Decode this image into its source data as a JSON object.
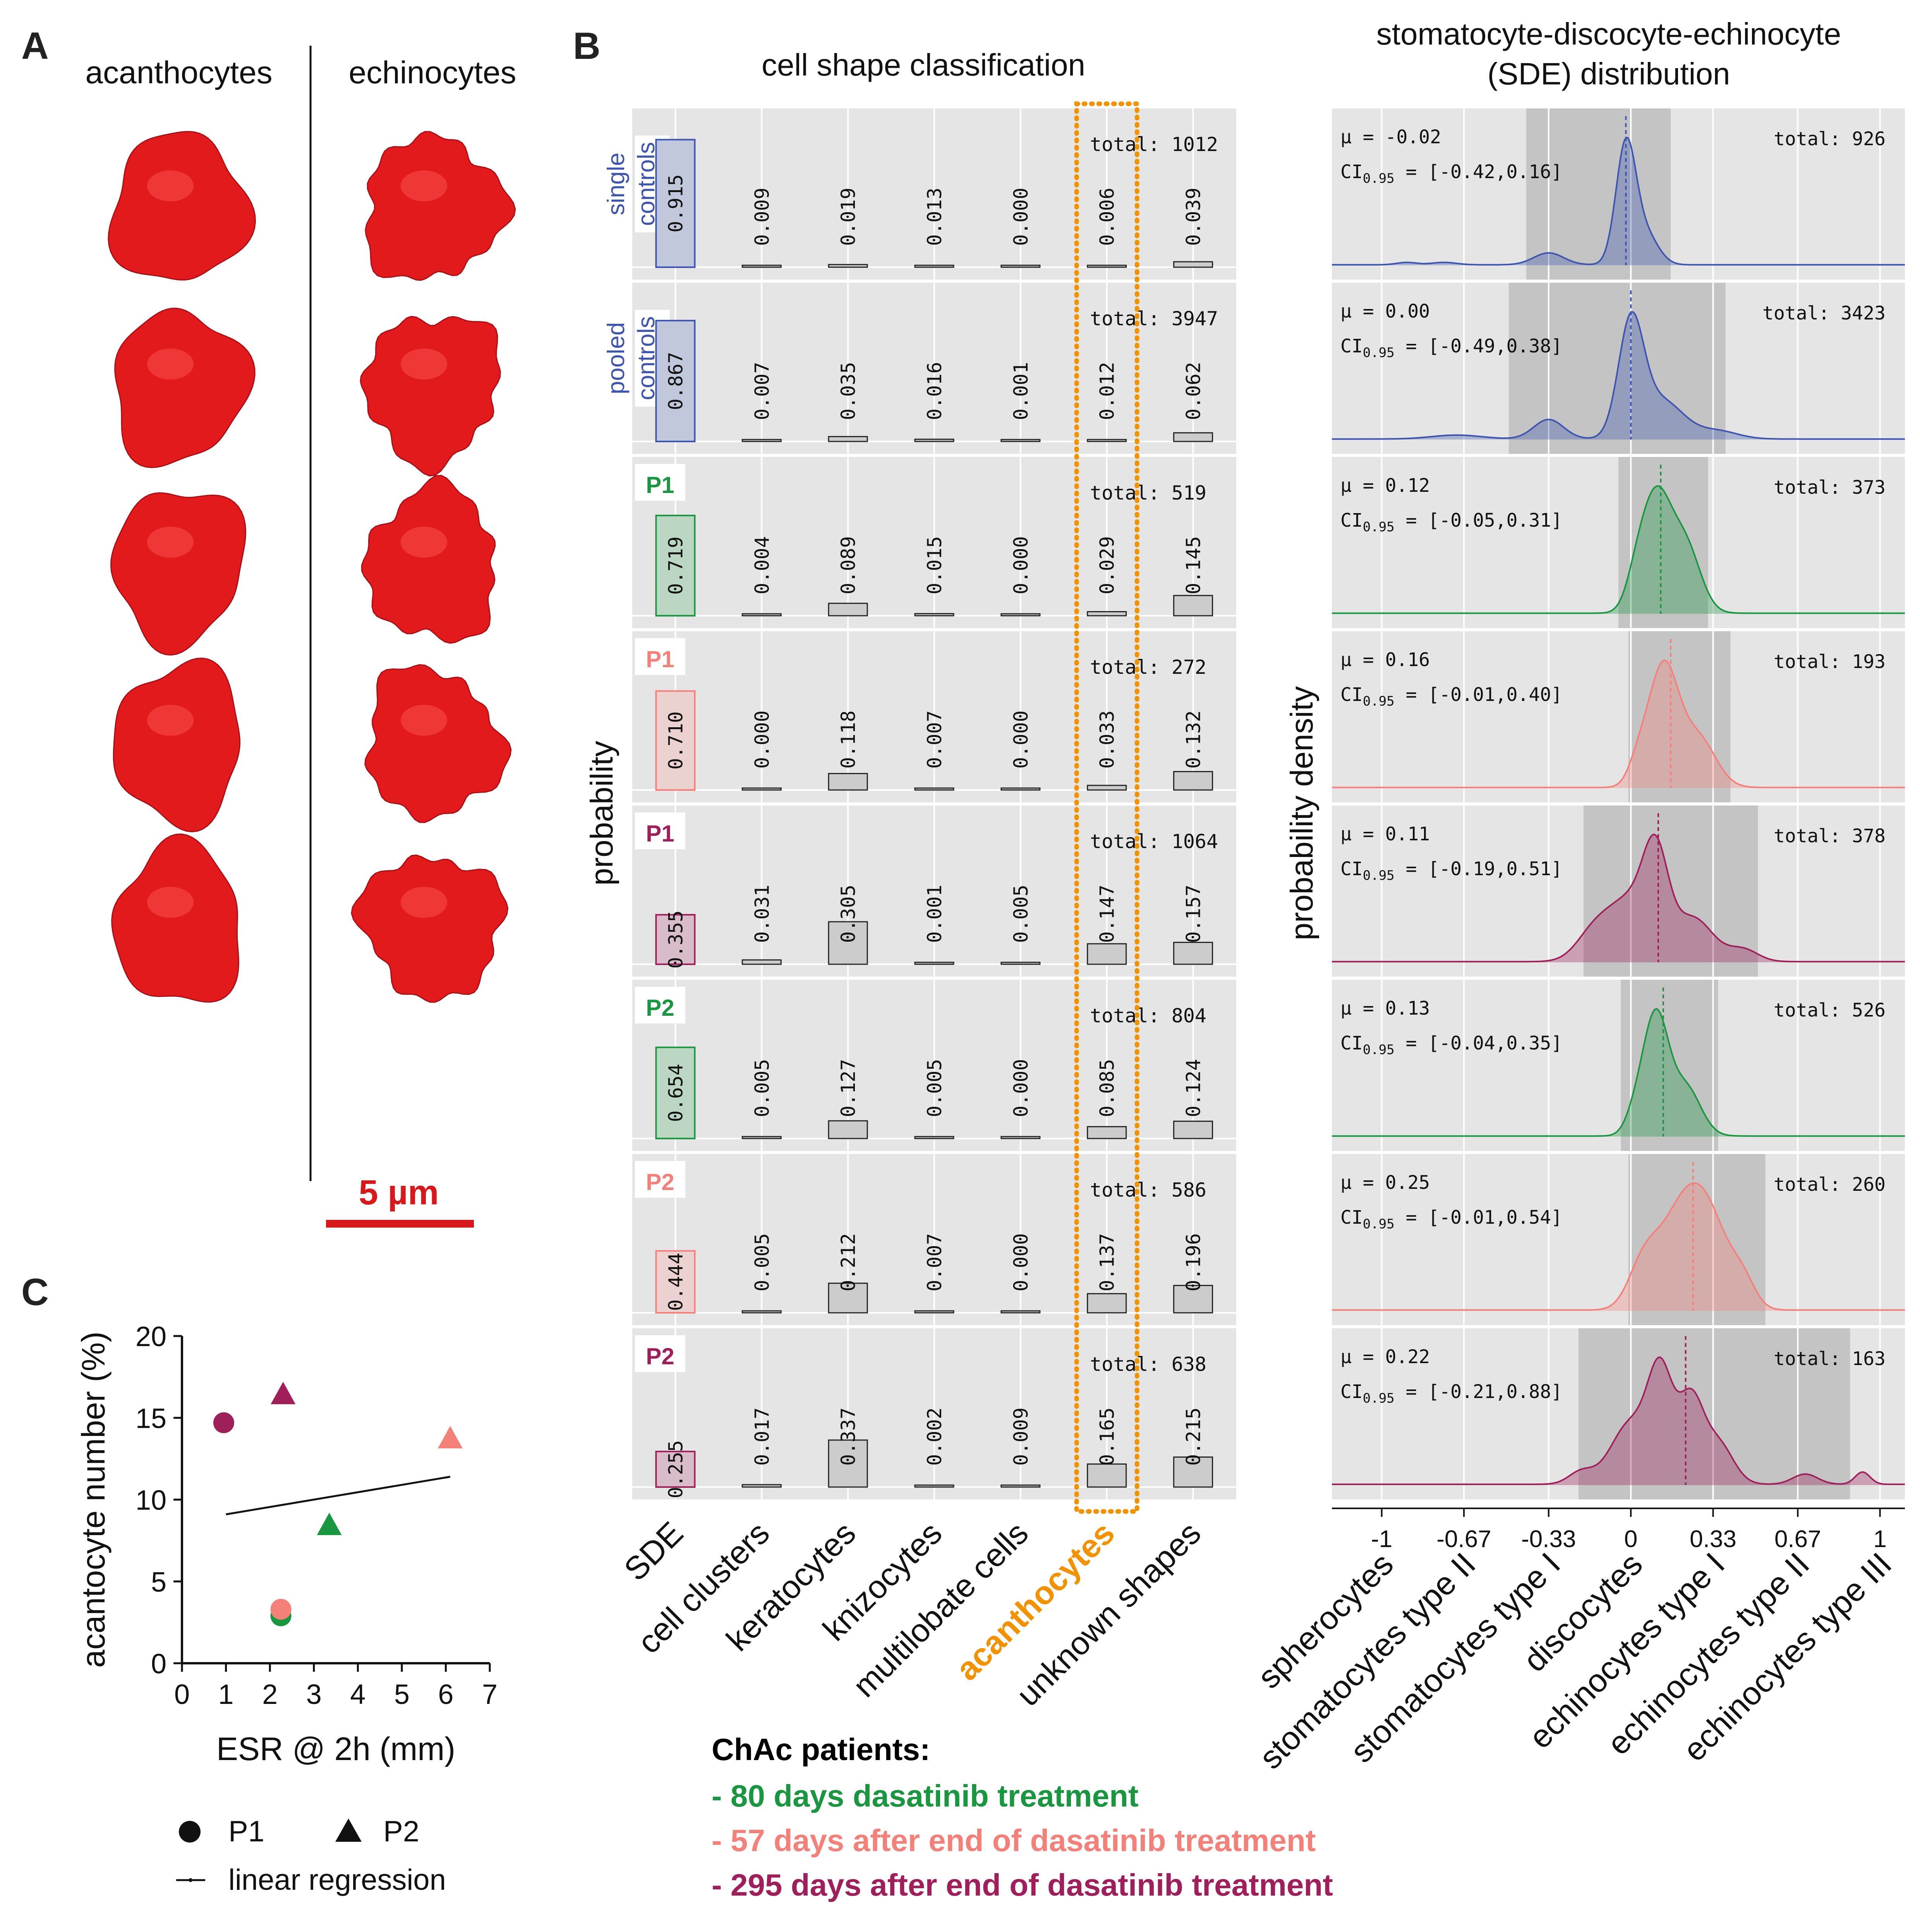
{
  "panel_labels": {
    "a": "A",
    "b": "B",
    "c": "C"
  },
  "panel_a": {
    "left_title": "acanthocytes",
    "right_title": "echinocytes",
    "scale_bar_label": "5 µm",
    "cell_color": "#e31a1c"
  },
  "panel_b": {
    "cls_title": "cell shape classification",
    "sde_title_line1": "stomatocyte-discocyte-echinocyte",
    "sde_title_line2": "(SDE) distribution",
    "cls_ylabel": "probability",
    "sde_ylabel": "probability density",
    "highlight_category": "acanthocytes",
    "highlight_color": "#f39200"
  },
  "patients_legend": {
    "title": "ChAc patients:",
    "items": [
      {
        "label": "- 80 days dasatinib treatment",
        "color": "#1a9641"
      },
      {
        "label": "- 57 days after end of dasatinib treatment",
        "color": "#f4807a"
      },
      {
        "label": "- 295 days after end of dasatinib treatment",
        "color": "#9e1f5a"
      }
    ]
  },
  "chart_data": [
    {
      "type": "bar",
      "title": "cell shape classification",
      "ylabel": "probability",
      "categories": [
        "SDE",
        "cell clusters",
        "keratocytes",
        "knizocytes",
        "multilobate cells",
        "acanthocytes",
        "unknown shapes"
      ],
      "ylim": [
        0,
        1
      ],
      "series": [
        {
          "name": "single controls",
          "label_lines": [
            "single",
            "controls"
          ],
          "color": "#3d55b0",
          "total_label": "total: 1012",
          "labels": [
            "0.915",
            "0.009",
            "0.019",
            "0.013",
            "0.000",
            "0.006",
            "0.039"
          ],
          "values": [
            0.915,
            0.009,
            0.019,
            0.013,
            0.0,
            0.006,
            0.039
          ]
        },
        {
          "name": "pooled controls",
          "label_lines": [
            "pooled",
            "controls"
          ],
          "color": "#3d55b0",
          "total_label": "total: 3947",
          "labels": [
            "0.867",
            "0.007",
            "0.035",
            "0.016",
            "0.001",
            "0.012",
            "0.062"
          ],
          "values": [
            0.867,
            0.007,
            0.035,
            0.016,
            0.001,
            0.012,
            0.062
          ]
        },
        {
          "name": "P1",
          "label_lines": [
            "P1"
          ],
          "color": "#1a9641",
          "total_label": "total: 519",
          "labels": [
            "0.719",
            "0.004",
            "0.089",
            "0.015",
            "0.000",
            "0.029",
            "0.145"
          ],
          "values": [
            0.719,
            0.004,
            0.089,
            0.015,
            0.0,
            0.029,
            0.145
          ]
        },
        {
          "name": "P1",
          "label_lines": [
            "P1"
          ],
          "color": "#f4807a",
          "total_label": "total: 272",
          "labels": [
            "0.710",
            "0.000",
            "0.118",
            "0.007",
            "0.000",
            "0.033",
            "0.132"
          ],
          "values": [
            0.71,
            0.0,
            0.118,
            0.007,
            0.0,
            0.033,
            0.132
          ]
        },
        {
          "name": "P1",
          "label_lines": [
            "P1"
          ],
          "color": "#9e1f5a",
          "total_label": "total: 1064",
          "labels": [
            "0.355",
            "0.031",
            "0.305",
            "0.001",
            "0.005",
            "0.147",
            "0.157"
          ],
          "values": [
            0.355,
            0.031,
            0.305,
            0.001,
            0.005,
            0.147,
            0.157
          ]
        },
        {
          "name": "P2",
          "label_lines": [
            "P2"
          ],
          "color": "#1a9641",
          "total_label": "total: 804",
          "labels": [
            "0.654",
            "0.005",
            "0.127",
            "0.005",
            "0.000",
            "0.085",
            "0.124"
          ],
          "values": [
            0.654,
            0.005,
            0.127,
            0.005,
            0.0,
            0.085,
            0.124
          ]
        },
        {
          "name": "P2",
          "label_lines": [
            "P2"
          ],
          "color": "#f4807a",
          "total_label": "total: 586",
          "labels": [
            "0.444",
            "0.005",
            "0.212",
            "0.007",
            "0.000",
            "0.137",
            "0.196"
          ],
          "values": [
            0.444,
            0.005,
            0.212,
            0.007,
            0.0,
            0.137,
            0.196
          ]
        },
        {
          "name": "P2",
          "label_lines": [
            "P2"
          ],
          "color": "#9e1f5a",
          "total_label": "total: 638",
          "labels": [
            "0.255",
            "0.017",
            "0.337",
            "0.002",
            "0.009",
            "0.165",
            "0.215"
          ],
          "values": [
            0.255,
            0.017,
            0.337,
            0.002,
            0.009,
            0.165,
            0.215
          ]
        }
      ]
    },
    {
      "type": "area",
      "title": "stomatocyte-discocyte-echinocyte (SDE) distribution",
      "ylabel": "probability density",
      "xlim": [
        -1.2,
        1.1
      ],
      "xticks": [
        -1,
        -0.67,
        -0.33,
        0,
        0.33,
        0.67,
        1
      ],
      "xtick_labels": [
        "-1",
        "-0.67",
        "-0.33",
        "0",
        "0.33",
        "0.67",
        "1"
      ],
      "class_labels": [
        "spherocytes",
        "stomatocytes type II",
        "stomatocytes type I",
        "discocytes",
        "echinocytes type I",
        "echinocytes type II",
        "echinocytes type III"
      ],
      "ci_symbol": "CI",
      "ci_subscript": "0.95",
      "series": [
        {
          "name": "single controls",
          "color": "#3d55b0",
          "mean_label": "μ = -0.02",
          "ci_label": " = [-0.42,0.16]",
          "total_label": "total: 926",
          "mean": -0.02,
          "ci": [
            -0.42,
            0.16
          ],
          "bumps": [
            {
              "m": -0.02,
              "s": 0.04,
              "a": 1.0
            },
            {
              "m": 0.06,
              "s": 0.05,
              "a": 0.25
            },
            {
              "m": -0.33,
              "s": 0.06,
              "a": 0.1
            },
            {
              "m": -0.75,
              "s": 0.05,
              "a": 0.02
            },
            {
              "m": -0.9,
              "s": 0.04,
              "a": 0.02
            }
          ]
        },
        {
          "name": "pooled controls",
          "color": "#3d55b0",
          "mean_label": "μ = 0.00",
          "ci_label": " = [-0.49,0.38]",
          "total_label": "total: 3423",
          "mean": 0.0,
          "ci": [
            -0.49,
            0.38
          ],
          "bumps": [
            {
              "m": 0.0,
              "s": 0.05,
              "a": 0.85
            },
            {
              "m": 0.12,
              "s": 0.09,
              "a": 0.3
            },
            {
              "m": -0.33,
              "s": 0.06,
              "a": 0.15
            },
            {
              "m": 0.35,
              "s": 0.08,
              "a": 0.06
            },
            {
              "m": -0.7,
              "s": 0.1,
              "a": 0.03
            }
          ]
        },
        {
          "name": "P1",
          "color": "#1a9641",
          "mean_label": "μ = 0.12",
          "ci_label": " = [-0.05,0.31]",
          "total_label": "total: 373",
          "mean": 0.12,
          "ci": [
            -0.05,
            0.31
          ],
          "bumps": [
            {
              "m": 0.1,
              "s": 0.06,
              "a": 0.8
            },
            {
              "m": 0.22,
              "s": 0.06,
              "a": 0.45
            },
            {
              "m": 0.02,
              "s": 0.04,
              "a": 0.15
            }
          ]
        },
        {
          "name": "P1",
          "color": "#f4807a",
          "mean_label": "μ = 0.16",
          "ci_label": " = [-0.01,0.40]",
          "total_label": "total: 193",
          "mean": 0.16,
          "ci": [
            -0.01,
            0.4
          ],
          "bumps": [
            {
              "m": 0.13,
              "s": 0.06,
              "a": 0.85
            },
            {
              "m": 0.27,
              "s": 0.07,
              "a": 0.35
            },
            {
              "m": 0.03,
              "s": 0.04,
              "a": 0.15
            }
          ]
        },
        {
          "name": "P1",
          "color": "#9e1f5a",
          "mean_label": "μ = 0.11",
          "ci_label": " = [-0.19,0.51]",
          "total_label": "total: 378",
          "mean": 0.11,
          "ci": [
            -0.19,
            0.51
          ],
          "bumps": [
            {
              "m": 0.1,
              "s": 0.05,
              "a": 0.5
            },
            {
              "m": 0.0,
              "s": 0.09,
              "a": 0.35
            },
            {
              "m": 0.25,
              "s": 0.08,
              "a": 0.25
            },
            {
              "m": -0.15,
              "s": 0.07,
              "a": 0.15
            },
            {
              "m": 0.45,
              "s": 0.06,
              "a": 0.07
            }
          ]
        },
        {
          "name": "P2",
          "color": "#1a9641",
          "mean_label": "μ = 0.13",
          "ci_label": " = [-0.04,0.35]",
          "total_label": "total: 526",
          "mean": 0.13,
          "ci": [
            -0.04,
            0.35
          ],
          "bumps": [
            {
              "m": 0.1,
              "s": 0.05,
              "a": 0.85
            },
            {
              "m": 0.22,
              "s": 0.06,
              "a": 0.35
            },
            {
              "m": 0.02,
              "s": 0.04,
              "a": 0.15
            }
          ]
        },
        {
          "name": "P2",
          "color": "#f4807a",
          "mean_label": "μ = 0.25",
          "ci_label": " = [-0.01,0.54]",
          "total_label": "total: 260",
          "mean": 0.25,
          "ci": [
            -0.01,
            0.54
          ],
          "bumps": [
            {
              "m": 0.2,
              "s": 0.09,
              "a": 0.45
            },
            {
              "m": 0.32,
              "s": 0.08,
              "a": 0.35
            },
            {
              "m": 0.05,
              "s": 0.06,
              "a": 0.2
            },
            {
              "m": 0.45,
              "s": 0.05,
              "a": 0.12
            }
          ]
        },
        {
          "name": "P2",
          "color": "#9e1f5a",
          "mean_label": "μ = 0.22",
          "ci_label": " = [-0.21,0.88]",
          "total_label": "total: 163",
          "mean": 0.22,
          "ci": [
            -0.21,
            0.88
          ],
          "bumps": [
            {
              "m": 0.12,
              "s": 0.05,
              "a": 0.5
            },
            {
              "m": 0.24,
              "s": 0.05,
              "a": 0.4
            },
            {
              "m": 0.0,
              "s": 0.08,
              "a": 0.3
            },
            {
              "m": 0.35,
              "s": 0.06,
              "a": 0.2
            },
            {
              "m": -0.2,
              "s": 0.05,
              "a": 0.06
            },
            {
              "m": 0.7,
              "s": 0.05,
              "a": 0.05
            },
            {
              "m": 0.93,
              "s": 0.03,
              "a": 0.06
            }
          ]
        }
      ]
    },
    {
      "type": "scatter",
      "xlabel": "ESR @ 2h (mm)",
      "ylabel": "acantocyte number (%)",
      "xlim": [
        0,
        7
      ],
      "ylim": [
        0,
        20
      ],
      "xticks": [
        0,
        1,
        2,
        3,
        4,
        5,
        6,
        7
      ],
      "xtick_labels": [
        "0",
        "1",
        "2",
        "3",
        "4",
        "5",
        "6",
        "7"
      ],
      "yticks": [
        0,
        5,
        10,
        15,
        20
      ],
      "ytick_labels": [
        "0",
        "5",
        "10",
        "15",
        "20"
      ],
      "points": [
        {
          "patient": "P1",
          "marker": "circle",
          "color": "#9e1f5a",
          "x": 0.95,
          "y": 14.7
        },
        {
          "patient": "P1",
          "marker": "circle",
          "color": "#1a9641",
          "x": 2.25,
          "y": 2.9
        },
        {
          "patient": "P1",
          "marker": "circle",
          "color": "#f4807a",
          "x": 2.25,
          "y": 3.3
        },
        {
          "patient": "P2",
          "marker": "triangle",
          "color": "#9e1f5a",
          "x": 2.3,
          "y": 16.4
        },
        {
          "patient": "P2",
          "marker": "triangle",
          "color": "#1a9641",
          "x": 3.35,
          "y": 8.4
        },
        {
          "patient": "P2",
          "marker": "triangle",
          "color": "#f4807a",
          "x": 6.1,
          "y": 13.7
        }
      ],
      "regression": {
        "x": [
          1.0,
          6.1
        ],
        "y": [
          9.1,
          11.4
        ]
      },
      "legend": {
        "p1": "P1",
        "p2": "P2",
        "regression": "linear regression"
      }
    }
  ]
}
